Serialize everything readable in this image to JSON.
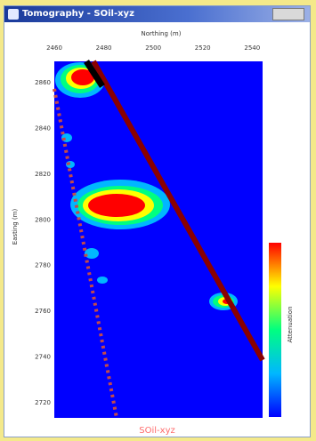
{
  "window": {
    "title": "Tomography - SOil-xyz",
    "app_icon": "tomography-app-icon"
  },
  "chart_data": {
    "type": "heatmap",
    "xlabel": "Northing (m)",
    "ylabel": "Easting (m)",
    "xlim": [
      2460,
      2550
    ],
    "ylim": [
      2520,
      2870
    ],
    "x_ticks": [
      "2460",
      "2480",
      "2500",
      "2520",
      "2540"
    ],
    "y_ticks": [
      "2860",
      "2840",
      "2820",
      "2800",
      "2780",
      "2760",
      "2740",
      "2720"
    ],
    "colorbar": {
      "label": "Attenuation",
      "min": 0,
      "max": 1,
      "colors": [
        "#0000ff",
        "#00b7ff",
        "#00ff80",
        "#ffff00",
        "#ff0000"
      ]
    },
    "background_value": 0,
    "well_paths": [
      {
        "style": "dashed",
        "color": "#c24a4a"
      },
      {
        "style": "solid",
        "color": "#6a0000"
      }
    ]
  },
  "footer": {
    "label": "SOil-xyz"
  }
}
